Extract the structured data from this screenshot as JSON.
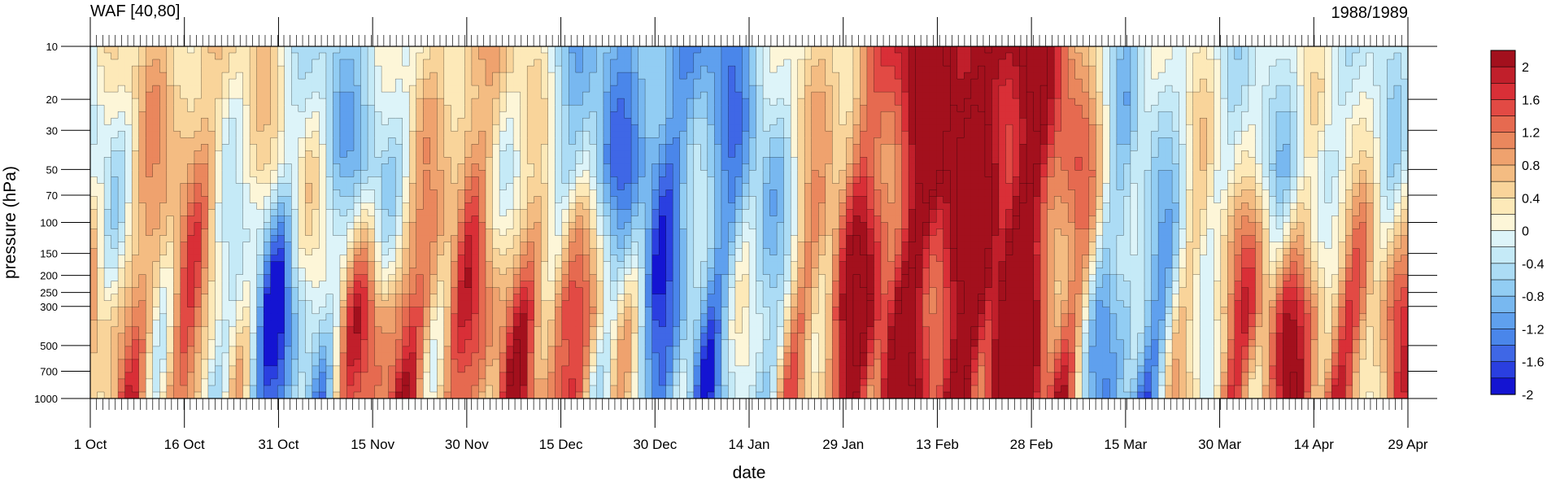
{
  "chart_data": {
    "type": "heatmap",
    "title_left": "WAF [40,80]",
    "title_right": "1988/1989",
    "xlabel": "date",
    "ylabel": "pressure (hPa)",
    "x_ticks": [
      "1 Oct",
      "16 Oct",
      "31 Oct",
      "15 Nov",
      "30 Nov",
      "15 Dec",
      "30 Dec",
      "14 Jan",
      "29 Jan",
      "13 Feb",
      "28 Feb",
      "15 Mar",
      "30 Mar",
      "14 Apr",
      "29 Apr"
    ],
    "x_range": [
      "1 Oct",
      "29 Apr"
    ],
    "y_ticks": [
      10,
      20,
      30,
      50,
      70,
      100,
      150,
      200,
      250,
      300,
      500,
      700,
      1000
    ],
    "y_range": [
      1000,
      10
    ],
    "y_scale": "log",
    "colorbar": {
      "labels": [
        "2",
        "1.6",
        "1.2",
        "0.8",
        "0.4",
        "0",
        "-0.4",
        "-0.8",
        "-1.2",
        "-1.6",
        "-2"
      ],
      "levels": [
        -2.2,
        -2.0,
        -1.8,
        -1.6,
        -1.4,
        -1.2,
        -1.0,
        -0.8,
        -0.6,
        -0.4,
        -0.2,
        0.0,
        0.2,
        0.4,
        0.6,
        0.8,
        1.0,
        1.2,
        1.4,
        1.6,
        1.8,
        2.0,
        2.2
      ],
      "colors": [
        "#1414d2",
        "#2a3fe0",
        "#3f67e6",
        "#4a86ea",
        "#5fa0ee",
        "#78b8f0",
        "#92cdf3",
        "#acdcf5",
        "#c5eaf7",
        "#ddf4f9",
        "#fdf6d8",
        "#fde9b8",
        "#f9d49a",
        "#f4bc82",
        "#efa26e",
        "#ea875d",
        "#e66a50",
        "#e24a44",
        "#d92f37",
        "#c11f2b",
        "#a3101d"
      ]
    },
    "date_labels_full": [
      "1 Oct",
      "16 Oct",
      "31 Oct",
      "15 Nov",
      "30 Nov",
      "15 Dec",
      "30 Dec",
      "14 Jan",
      "29 Jan",
      "13 Feb",
      "28 Feb",
      "15 Mar",
      "30 Mar",
      "14 Apr",
      "29 Apr"
    ],
    "anomaly_columns": {
      "x_ticks_index": [
        0,
        1,
        2,
        3,
        4,
        5,
        6,
        7,
        8,
        9,
        10,
        11,
        12,
        13,
        14
      ],
      "strat_value": [
        -0.4,
        0.6,
        -0.2,
        -0.8,
        0.8,
        -0.6,
        -1.4,
        -1.0,
        0.6,
        2.2,
        2.0,
        -0.6,
        -0.2,
        -0.4,
        -0.2
      ],
      "trop_value": [
        0.4,
        0.8,
        -1.6,
        1.2,
        0.8,
        1.4,
        -1.2,
        -0.8,
        1.6,
        1.8,
        2.2,
        -1.6,
        0.8,
        1.2,
        0.6
      ]
    }
  }
}
